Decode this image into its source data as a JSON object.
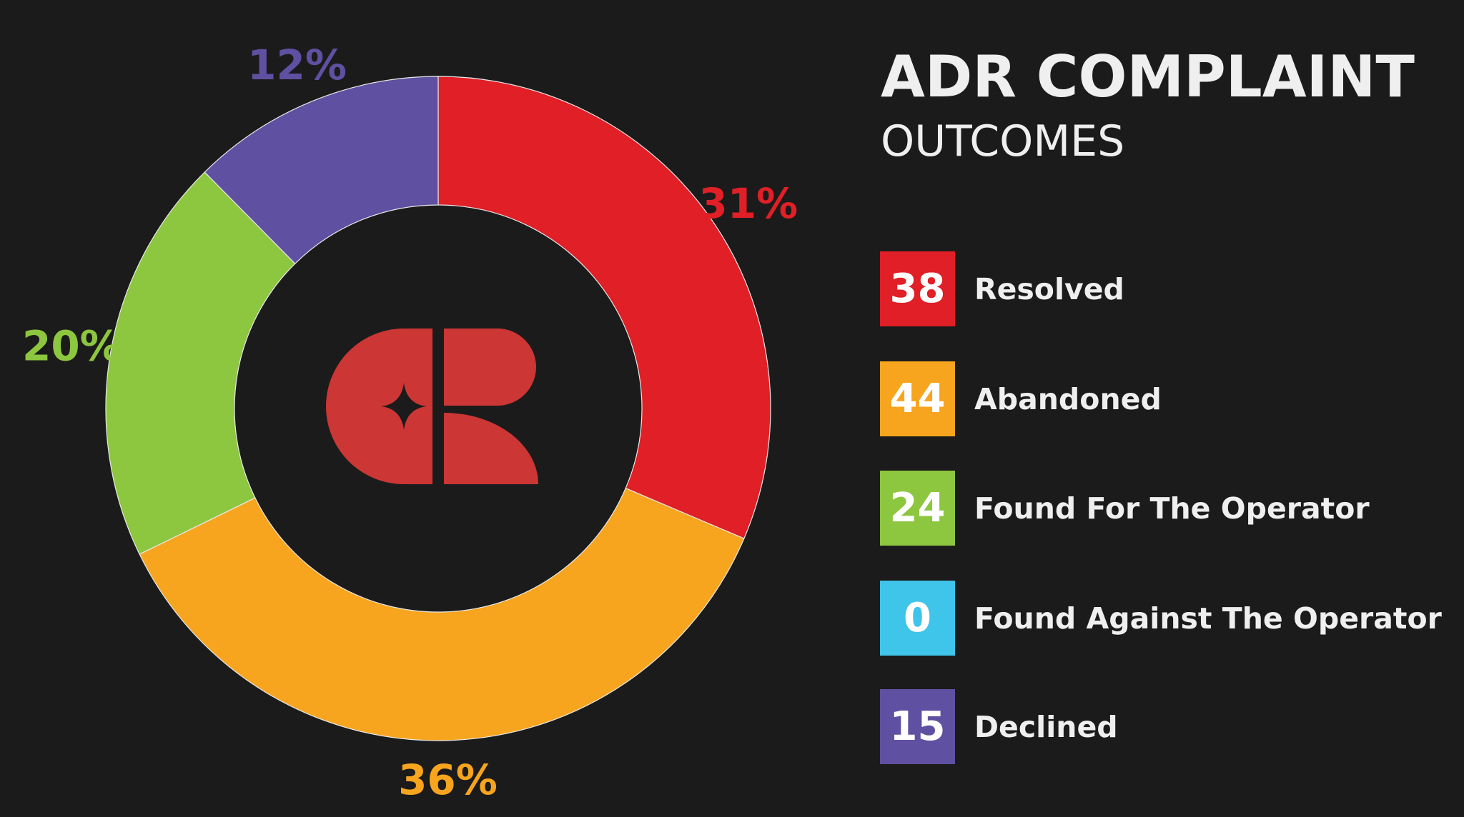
{
  "header": {
    "title": "ADR COMPLAINT",
    "subtitle": "OUTCOMES"
  },
  "chart_data": {
    "type": "pie",
    "title": "ADR COMPLAINT",
    "subtitle": "OUTCOMES",
    "donut": true,
    "legend_position": "right",
    "categories": [
      "Resolved",
      "Abandoned",
      "Found For The Operator",
      "Found Against The Operator",
      "Declined"
    ],
    "values": [
      38,
      44,
      24,
      0,
      15
    ],
    "colors": [
      "#e01f26",
      "#f7a51e",
      "#8dc63f",
      "#3fc4ea",
      "#5f50a1"
    ],
    "slice_labels": [
      "31%",
      "36%",
      "20%",
      "",
      "12%"
    ],
    "center_logo": "cr-logo"
  },
  "legend": {
    "items": [
      {
        "value": "38",
        "label": "Resolved",
        "color": "#e01f26"
      },
      {
        "value": "44",
        "label": "Abandoned",
        "color": "#f7a51e"
      },
      {
        "value": "24",
        "label": "Found For The Operator",
        "color": "#8dc63f"
      },
      {
        "value": "0",
        "label": "Found Against The Operator",
        "color": "#3fc4ea"
      },
      {
        "value": "15",
        "label": "Declined",
        "color": "#5f50a1"
      }
    ]
  },
  "logo": {
    "name": "cr-logo",
    "color": "#cc3634"
  }
}
